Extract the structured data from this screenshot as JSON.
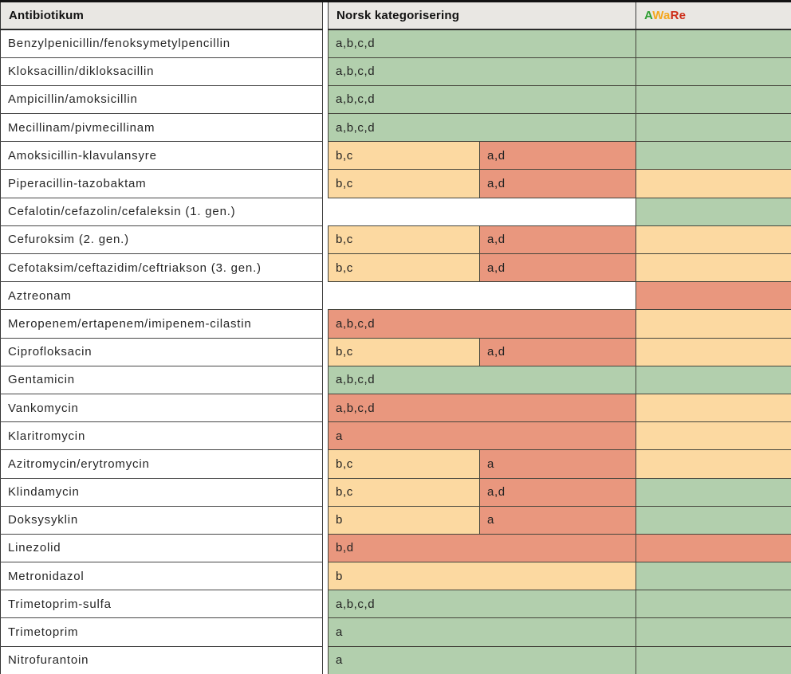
{
  "table": {
    "headers": {
      "antibiotic": "Antibiotikum",
      "norwegian": "Norsk kategorisering"
    },
    "aware_header": {
      "a": "A",
      "wa": "Wa",
      "re": "Re"
    },
    "colors": {
      "green": "#b2cfad",
      "orange": "#fcd9a1",
      "red": "#e9977e",
      "white": "#ffffff",
      "header_bg": "#e9e7e3",
      "aware_a": "#2f9e33",
      "aware_wa": "#f4a71e",
      "aware_re": "#cd2b16"
    },
    "rows": [
      {
        "name": "Benzylpenicillin/fenoksymetylpencillin",
        "cells": [
          {
            "text": "a,b,c,d",
            "color": "green",
            "span": 2
          }
        ],
        "aware": "green"
      },
      {
        "name": "Kloksacillin/dikloksacillin",
        "cells": [
          {
            "text": "a,b,c,d",
            "color": "green",
            "span": 2
          }
        ],
        "aware": "green"
      },
      {
        "name": "Ampicillin/amoksicillin",
        "cells": [
          {
            "text": "a,b,c,d",
            "color": "green",
            "span": 2
          }
        ],
        "aware": "green"
      },
      {
        "name": "Mecillinam/pivmecillinam",
        "cells": [
          {
            "text": "a,b,c,d",
            "color": "green",
            "span": 2
          }
        ],
        "aware": "green"
      },
      {
        "name": "Amoksicillin-klavulansyre",
        "cells": [
          {
            "text": "b,c",
            "color": "orange",
            "span": 1
          },
          {
            "text": "a,d",
            "color": "red",
            "span": 1
          }
        ],
        "aware": "green"
      },
      {
        "name": "Piperacillin-tazobaktam",
        "cells": [
          {
            "text": "b,c",
            "color": "orange",
            "span": 1
          },
          {
            "text": "a,d",
            "color": "red",
            "span": 1
          }
        ],
        "aware": "orange"
      },
      {
        "name": "Cefalotin/cefazolin/cefaleksin (1. gen.)",
        "cells": [
          {
            "text": "",
            "color": "white",
            "span": 2
          }
        ],
        "aware": "green"
      },
      {
        "name": "Cefuroksim (2. gen.)",
        "cells": [
          {
            "text": "b,c",
            "color": "orange",
            "span": 1
          },
          {
            "text": "a,d",
            "color": "red",
            "span": 1
          }
        ],
        "aware": "orange"
      },
      {
        "name": "Cefotaksim/ceftazidim/ceftriakson (3. gen.)",
        "cells": [
          {
            "text": "b,c",
            "color": "orange",
            "span": 1
          },
          {
            "text": "a,d",
            "color": "red",
            "span": 1
          }
        ],
        "aware": "orange"
      },
      {
        "name": "Aztreonam",
        "cells": [
          {
            "text": "",
            "color": "white",
            "span": 2
          }
        ],
        "aware": "red"
      },
      {
        "name": "Meropenem/ertapenem/imipenem-cilastin",
        "cells": [
          {
            "text": "a,b,c,d",
            "color": "red",
            "span": 2
          }
        ],
        "aware": "orange"
      },
      {
        "name": "Ciprofloksacin",
        "cells": [
          {
            "text": "b,c",
            "color": "orange",
            "span": 1
          },
          {
            "text": "a,d",
            "color": "red",
            "span": 1
          }
        ],
        "aware": "orange"
      },
      {
        "name": "Gentamicin",
        "cells": [
          {
            "text": "a,b,c,d",
            "color": "green",
            "span": 2
          }
        ],
        "aware": "green"
      },
      {
        "name": "Vankomycin",
        "cells": [
          {
            "text": "a,b,c,d",
            "color": "red",
            "span": 2
          }
        ],
        "aware": "orange"
      },
      {
        "name": "Klaritromycin",
        "cells": [
          {
            "text": "a",
            "color": "red",
            "span": 2
          }
        ],
        "aware": "orange"
      },
      {
        "name": "Azitromycin/erytromycin",
        "cells": [
          {
            "text": "b,c",
            "color": "orange",
            "span": 1
          },
          {
            "text": "a",
            "color": "red",
            "span": 1
          }
        ],
        "aware": "orange"
      },
      {
        "name": "Klindamycin",
        "cells": [
          {
            "text": "b,c",
            "color": "orange",
            "span": 1
          },
          {
            "text": "a,d",
            "color": "red",
            "span": 1
          }
        ],
        "aware": "green"
      },
      {
        "name": "Doksysyklin",
        "cells": [
          {
            "text": "b",
            "color": "orange",
            "span": 1
          },
          {
            "text": "a",
            "color": "red",
            "span": 1
          }
        ],
        "aware": "green"
      },
      {
        "name": "Linezolid",
        "cells": [
          {
            "text": "b,d",
            "color": "red",
            "span": 2
          }
        ],
        "aware": "red"
      },
      {
        "name": "Metronidazol",
        "cells": [
          {
            "text": "b",
            "color": "orange",
            "span": 2
          }
        ],
        "aware": "green"
      },
      {
        "name": "Trimetoprim-sulfa",
        "cells": [
          {
            "text": "a,b,c,d",
            "color": "green",
            "span": 2
          }
        ],
        "aware": "green"
      },
      {
        "name": "Trimetoprim",
        "cells": [
          {
            "text": "a",
            "color": "green",
            "span": 2
          }
        ],
        "aware": "green"
      },
      {
        "name": "Nitrofurantoin",
        "cells": [
          {
            "text": "a",
            "color": "green",
            "span": 2
          }
        ],
        "aware": "green"
      }
    ]
  }
}
